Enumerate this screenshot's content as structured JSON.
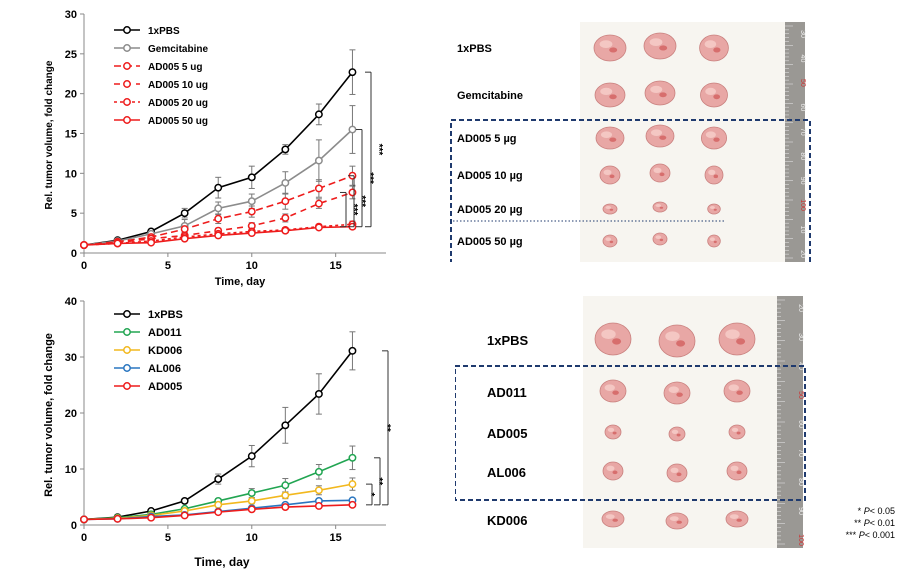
{
  "chart_data": [
    {
      "type": "line",
      "xlabel": "Time, day",
      "ylabel": "Rel. tumor volume, fold change",
      "xlim": [
        0,
        18
      ],
      "ylim": [
        0,
        30
      ],
      "xticks": [
        0,
        5,
        10,
        15
      ],
      "yticks": [
        0,
        5,
        10,
        15,
        20,
        25,
        30
      ],
      "x": [
        0,
        2,
        4,
        6,
        8,
        10,
        12,
        14,
        16
      ],
      "legend_position": "top-left",
      "series": [
        {
          "name": "1xPBS",
          "color": "#000000",
          "dash": "solid",
          "values": [
            1.0,
            1.6,
            2.7,
            5.0,
            8.2,
            9.5,
            13.0,
            17.4,
            22.7
          ],
          "errors": [
            0,
            0.2,
            0.3,
            0.6,
            1.3,
            1.4,
            0.6,
            1.3,
            2.8
          ]
        },
        {
          "name": "Gemcitabine",
          "color": "#8c8c8c",
          "dash": "solid",
          "values": [
            1.0,
            1.5,
            2.4,
            3.4,
            5.6,
            6.5,
            8.8,
            11.6,
            15.5
          ],
          "errors": [
            0,
            0.2,
            0.3,
            0.8,
            0.8,
            0.9,
            1.4,
            2.6,
            3.0
          ]
        },
        {
          "name": "AD005 5 ug",
          "color": "#ee1c1c",
          "dash": "long",
          "values": [
            1.0,
            1.4,
            2.0,
            3.0,
            4.3,
            5.2,
            6.5,
            8.1,
            9.7
          ],
          "errors": [
            0,
            0.2,
            0.3,
            0.4,
            0.6,
            0.7,
            1.0,
            1.1,
            1.2
          ]
        },
        {
          "name": "AD005 10 ug",
          "color": "#ee1c1c",
          "dash": "mid",
          "values": [
            1.0,
            1.3,
            1.8,
            2.2,
            2.8,
            3.4,
            4.4,
            6.2,
            7.6
          ],
          "errors": [
            0,
            0.2,
            0.2,
            0.3,
            0.3,
            0.4,
            0.5,
            0.6,
            0.8
          ]
        },
        {
          "name": "AD005 20 ug",
          "color": "#ee1c1c",
          "dash": "short",
          "values": [
            1.0,
            1.2,
            1.5,
            2.0,
            2.4,
            2.7,
            2.9,
            3.3,
            3.6
          ],
          "errors": [
            0,
            0.1,
            0.2,
            0.2,
            0.3,
            0.3,
            0.3,
            0.3,
            0.4
          ]
        },
        {
          "name": "AD005 50 ug",
          "color": "#ee1c1c",
          "dash": "solid",
          "values": [
            1.0,
            1.2,
            1.3,
            1.8,
            2.2,
            2.5,
            2.8,
            3.2,
            3.3
          ],
          "errors": [
            0,
            0.1,
            0.1,
            0.2,
            0.2,
            0.2,
            0.2,
            0.2,
            0.3
          ]
        }
      ],
      "annotations": [
        "***",
        "***",
        "***",
        "***"
      ]
    },
    {
      "type": "line",
      "xlabel": "Time, day",
      "ylabel": "Rel. tumor volume, fold change",
      "xlim": [
        0,
        18
      ],
      "ylim": [
        0,
        40
      ],
      "xticks": [
        0,
        5,
        10,
        15
      ],
      "yticks": [
        0,
        10,
        20,
        30,
        40
      ],
      "x": [
        0,
        2,
        4,
        6,
        8,
        10,
        12,
        14,
        16
      ],
      "legend_position": "top-left",
      "series": [
        {
          "name": "1xPBS",
          "color": "#000000",
          "values": [
            1.0,
            1.4,
            2.5,
            4.3,
            8.2,
            12.3,
            17.8,
            23.4,
            31.1
          ],
          "errors": [
            0,
            0.2,
            0.3,
            0.3,
            0.9,
            1.9,
            3.2,
            3.6,
            3.4
          ]
        },
        {
          "name": "AD011",
          "color": "#22a552",
          "values": [
            1.0,
            1.3,
            1.9,
            2.9,
            4.3,
            5.7,
            7.1,
            9.5,
            12.0
          ],
          "errors": [
            0,
            0.1,
            0.2,
            0.3,
            0.4,
            0.8,
            1.2,
            1.3,
            2.1
          ]
        },
        {
          "name": "KD006",
          "color": "#f2b81e",
          "values": [
            1.0,
            1.2,
            1.7,
            2.5,
            3.6,
            4.3,
            5.3,
            6.2,
            7.3
          ],
          "errors": [
            0,
            0.1,
            0.2,
            0.2,
            0.3,
            0.5,
            0.6,
            0.8,
            1.1
          ]
        },
        {
          "name": "AL006",
          "color": "#2a76c0",
          "values": [
            1.0,
            1.1,
            1.5,
            1.8,
            2.4,
            3.0,
            3.6,
            4.3,
            4.4
          ],
          "errors": [
            0,
            0.1,
            0.1,
            0.1,
            0.2,
            0.2,
            0.3,
            0.3,
            0.4
          ]
        },
        {
          "name": "AD005",
          "color": "#ee1c1c",
          "values": [
            1.0,
            1.1,
            1.3,
            1.7,
            2.3,
            2.8,
            3.2,
            3.4,
            3.6
          ],
          "errors": [
            0,
            0.1,
            0.1,
            0.1,
            0.1,
            0.1,
            0.2,
            0.2,
            0.2
          ]
        }
      ],
      "annotations": [
        "**",
        "**",
        "*"
      ]
    }
  ],
  "photo_top": {
    "rows": [
      {
        "label": "1xPBS",
        "count": 3
      },
      {
        "label": "Gemcitabine",
        "count": 3
      },
      {
        "label": "AD005 5 µg",
        "count": 3
      },
      {
        "label": "AD005 10 µg",
        "count": 3
      },
      {
        "label": "AD005 20 µg",
        "count": 3
      },
      {
        "label": "AD005 50 µg",
        "count": 3
      }
    ],
    "ruler_marks": [
      "30",
      "40",
      "50",
      "60",
      "70",
      "80",
      "90",
      "100",
      "10",
      "20"
    ]
  },
  "photo_bottom": {
    "rows": [
      {
        "label": "1xPBS",
        "count": 3
      },
      {
        "label": "AD011",
        "count": 3
      },
      {
        "label": "AD005",
        "count": 3
      },
      {
        "label": "AL006",
        "count": 3
      },
      {
        "label": "KD006",
        "count": 3
      }
    ],
    "ruler_marks": [
      "20",
      "30",
      "40",
      "50",
      "60",
      "70",
      "80",
      "90",
      "100"
    ]
  },
  "footnote": {
    "line1": {
      "stars": "*",
      "p": "P",
      "rest": "< 0.05"
    },
    "line2": {
      "stars": "**",
      "p": "P",
      "rest": "< 0.01"
    },
    "line3": {
      "stars": "***",
      "p": "P",
      "rest": "< 0.001"
    }
  },
  "colors": {
    "accent_box": "#1f3a6e"
  }
}
